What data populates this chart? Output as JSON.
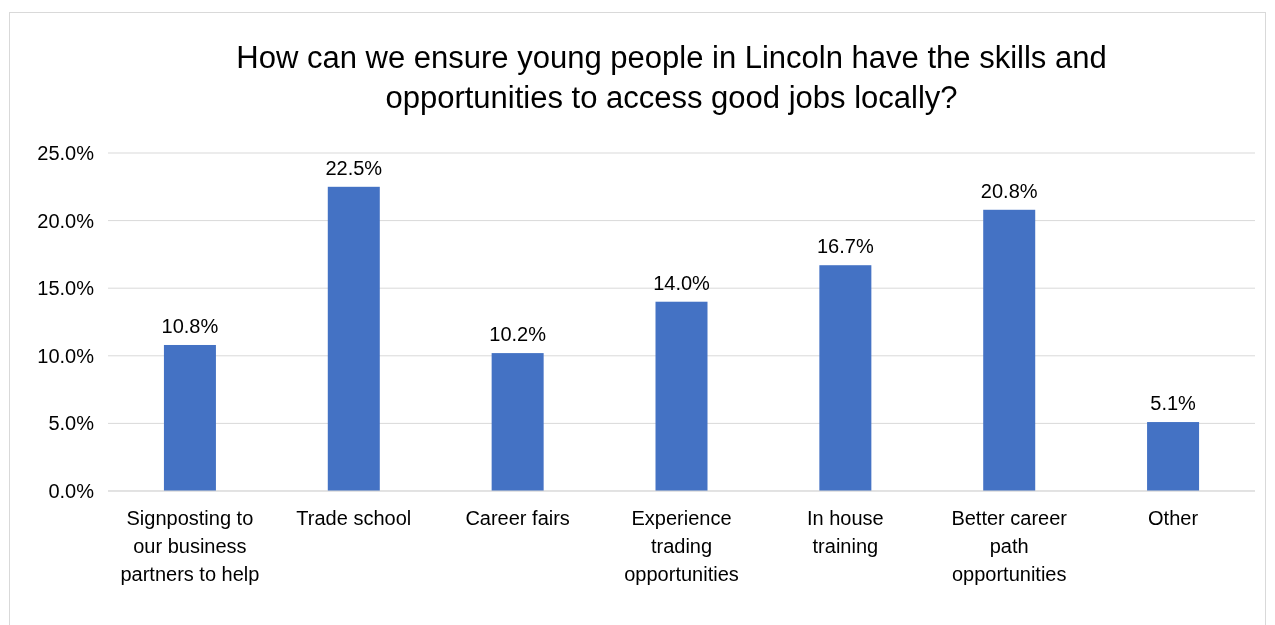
{
  "chart_data": {
    "type": "bar",
    "title": "How can we ensure young people in Lincoln have the skills and opportunities to access good jobs locally?",
    "categories": [
      "Signposting to our business partners to help",
      "Trade school",
      "Career fairs",
      "Experience trading opportunities",
      "In house training",
      "Better career path opportunities",
      "Other"
    ],
    "values": [
      10.8,
      22.5,
      10.2,
      14.0,
      16.7,
      20.8,
      5.1
    ],
    "value_labels": [
      "10.8%",
      "22.5%",
      "10.2%",
      "14.0%",
      "16.7%",
      "20.8%",
      "5.1%"
    ],
    "color": "#4472c4",
    "ylim": [
      0,
      25
    ],
    "yticks": [
      {
        "value": 0,
        "label": "0.0%"
      },
      {
        "value": 5,
        "label": "5.0%"
      },
      {
        "value": 10,
        "label": "10.0%"
      },
      {
        "value": 15,
        "label": "15.0%"
      },
      {
        "value": 20,
        "label": "20.0%"
      },
      {
        "value": 25,
        "label": "25.0%"
      }
    ],
    "grid": "y"
  }
}
